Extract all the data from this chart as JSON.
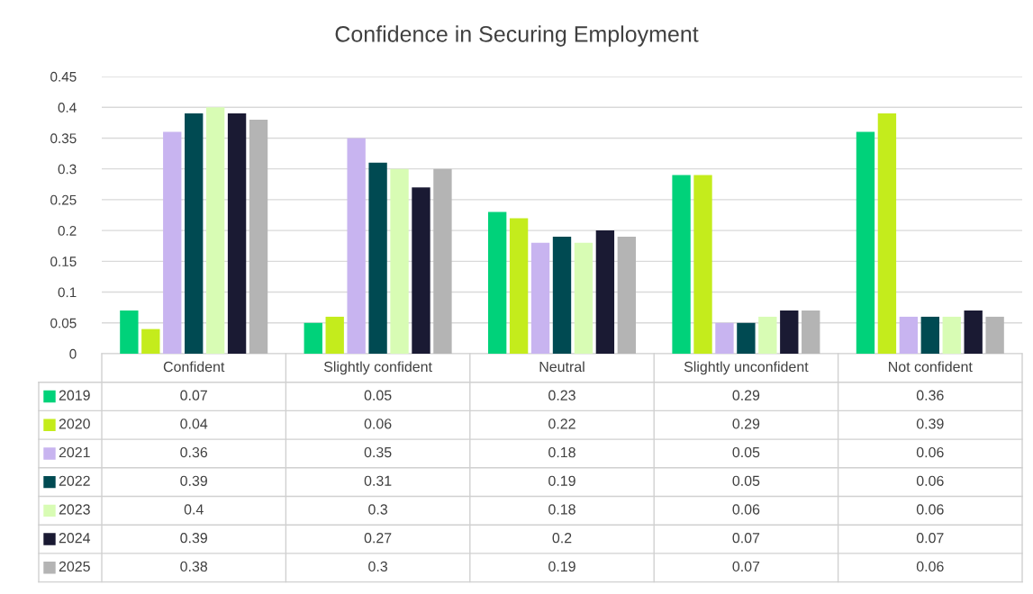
{
  "chart_data": {
    "type": "bar",
    "title": "Confidence in Securing Employment",
    "categories": [
      "Confident",
      "Slightly confident",
      "Neutral",
      "Slightly unconfident",
      "Not confident"
    ],
    "series": [
      {
        "name": "2019",
        "color": "#00d27a",
        "values": [
          0.07,
          0.05,
          0.23,
          0.29,
          0.36
        ]
      },
      {
        "name": "2020",
        "color": "#c4ec1c",
        "values": [
          0.04,
          0.06,
          0.22,
          0.29,
          0.39
        ]
      },
      {
        "name": "2021",
        "color": "#c8b4f0",
        "values": [
          0.36,
          0.35,
          0.18,
          0.05,
          0.06
        ]
      },
      {
        "name": "2022",
        "color": "#004a52",
        "values": [
          0.39,
          0.31,
          0.19,
          0.05,
          0.06
        ]
      },
      {
        "name": "2023",
        "color": "#d8fcb4",
        "values": [
          0.4,
          0.3,
          0.18,
          0.06,
          0.06
        ]
      },
      {
        "name": "2024",
        "color": "#1a1a33",
        "values": [
          0.39,
          0.27,
          0.2,
          0.07,
          0.07
        ]
      },
      {
        "name": "2025",
        "color": "#b4b4b4",
        "values": [
          0.38,
          0.3,
          0.19,
          0.07,
          0.06
        ]
      }
    ],
    "ylim": [
      0,
      0.45
    ],
    "yticks": [
      0,
      0.05,
      0.1,
      0.15,
      0.2,
      0.25,
      0.3,
      0.35,
      0.4,
      0.45
    ],
    "grid": "y",
    "data_labels": true,
    "legend": "bottom left"
  }
}
